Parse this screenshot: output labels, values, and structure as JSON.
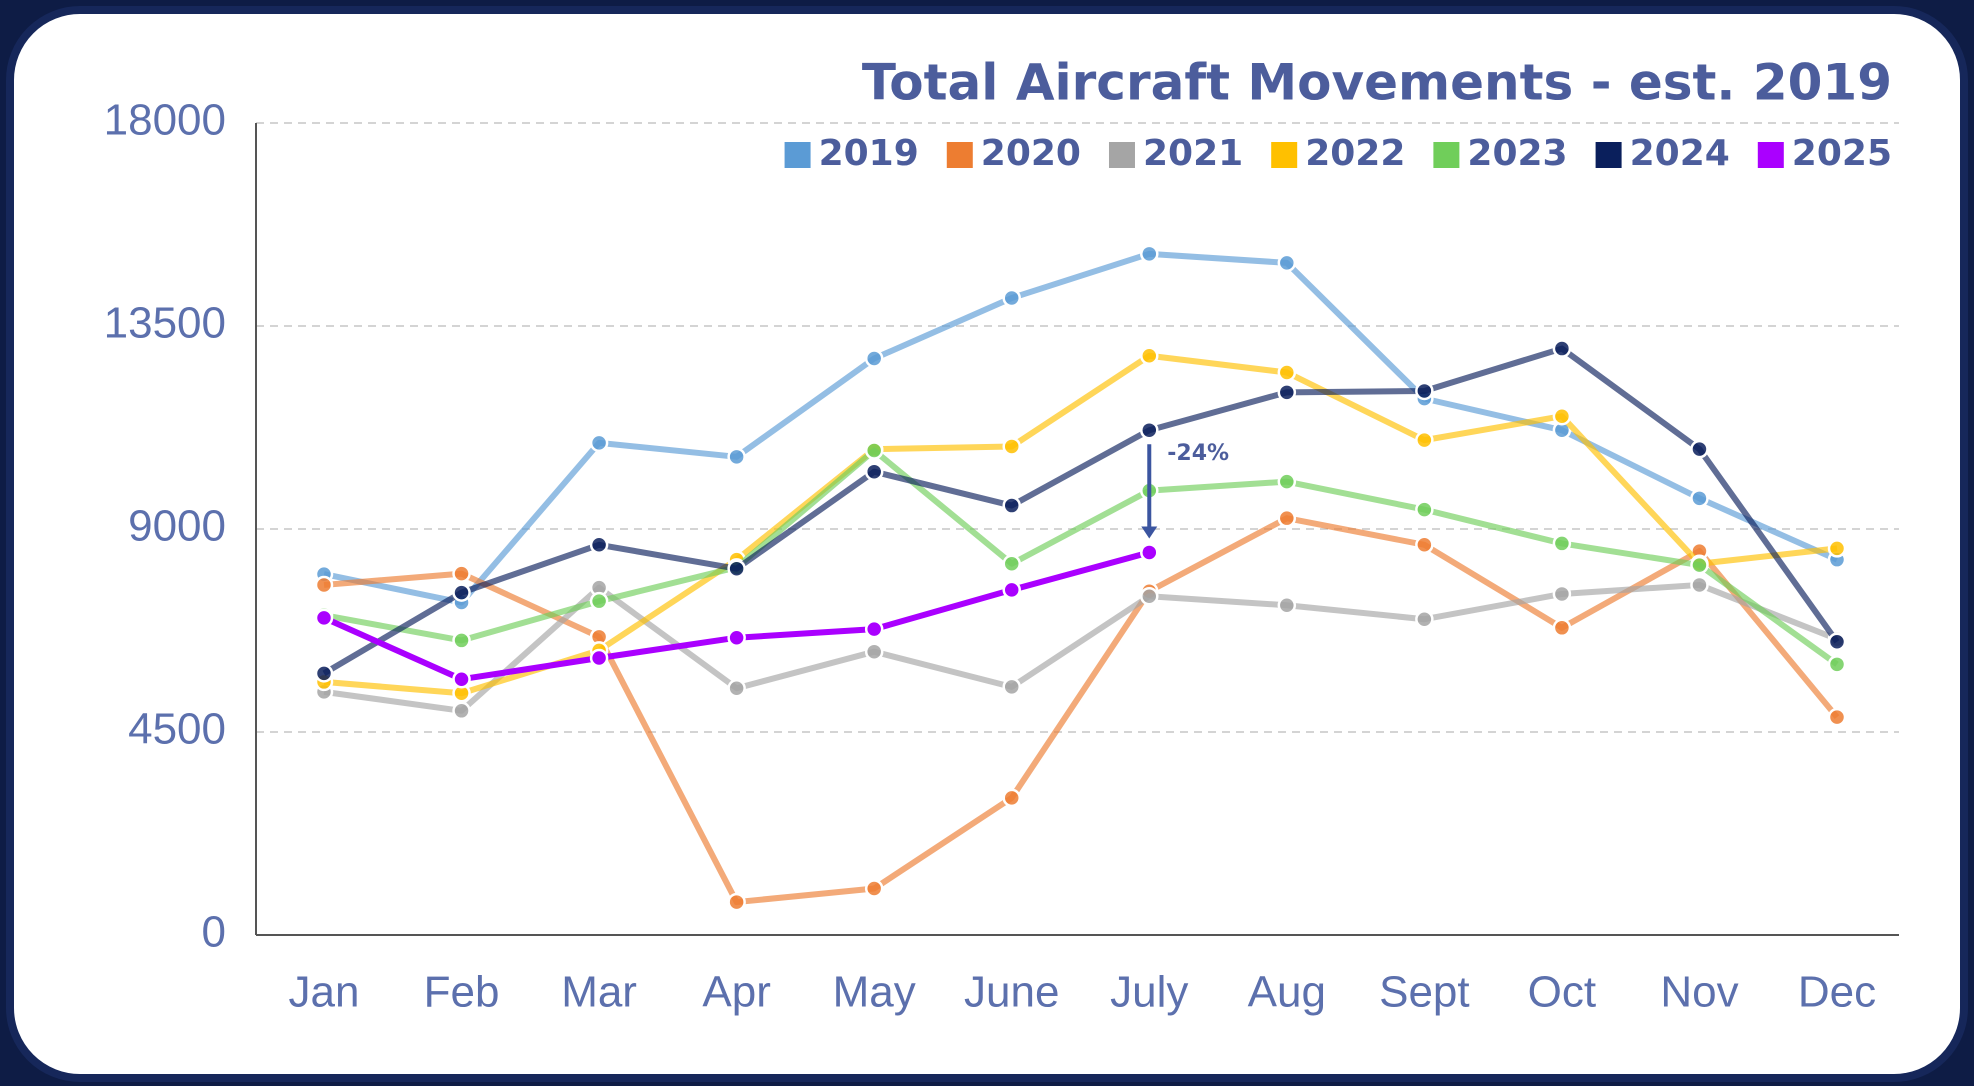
{
  "chart_data": {
    "type": "line",
    "title": "Total Aircraft Movements - est. 2019",
    "categories": [
      "Jan",
      "Feb",
      "Mar",
      "Apr",
      "May",
      "June",
      "July",
      "Aug",
      "Sept",
      "Oct",
      "Nov",
      "Dec"
    ],
    "series": [
      {
        "name": "2019",
        "color": "#5b9bd5",
        "values": [
          8000,
          7370,
          10910,
          10600,
          12780,
          14120,
          15100,
          14900,
          11890,
          11190,
          9680,
          8320
        ]
      },
      {
        "name": "2020",
        "color": "#ed7d31",
        "values": [
          7760,
          8010,
          6610,
          730,
          1030,
          3040,
          7620,
          9240,
          8650,
          6810,
          8510,
          4830
        ]
      },
      {
        "name": "2021",
        "color": "#a5a5a5",
        "values": [
          5390,
          4970,
          7700,
          5470,
          6280,
          5500,
          7510,
          7310,
          7000,
          7560,
          7760,
          6560
        ]
      },
      {
        "name": "2022",
        "color": "#ffc000",
        "values": [
          5610,
          5360,
          6310,
          8320,
          10770,
          10830,
          12840,
          12470,
          10970,
          11500,
          8230,
          8570
        ]
      },
      {
        "name": "2023",
        "color": "#70ce5a",
        "values": [
          7090,
          6530,
          7400,
          8150,
          10740,
          8230,
          9850,
          10050,
          9430,
          8680,
          8200,
          6000
        ]
      },
      {
        "name": "2024",
        "color": "#0a1f5c",
        "values": [
          5800,
          7590,
          8650,
          8120,
          10270,
          9520,
          11190,
          12030,
          12060,
          13000,
          10770,
          6500
        ]
      },
      {
        "name": "2025",
        "color": "#aa00ff",
        "values": [
          7030,
          5670,
          6140,
          6590,
          6780,
          7650,
          8480,
          null,
          null,
          null,
          null,
          null
        ]
      }
    ],
    "ylim": [
      0,
      18000
    ],
    "yticks": [
      0,
      4500,
      9000,
      13500,
      18000
    ],
    "grid": true,
    "annotations": [
      "-24%"
    ]
  }
}
